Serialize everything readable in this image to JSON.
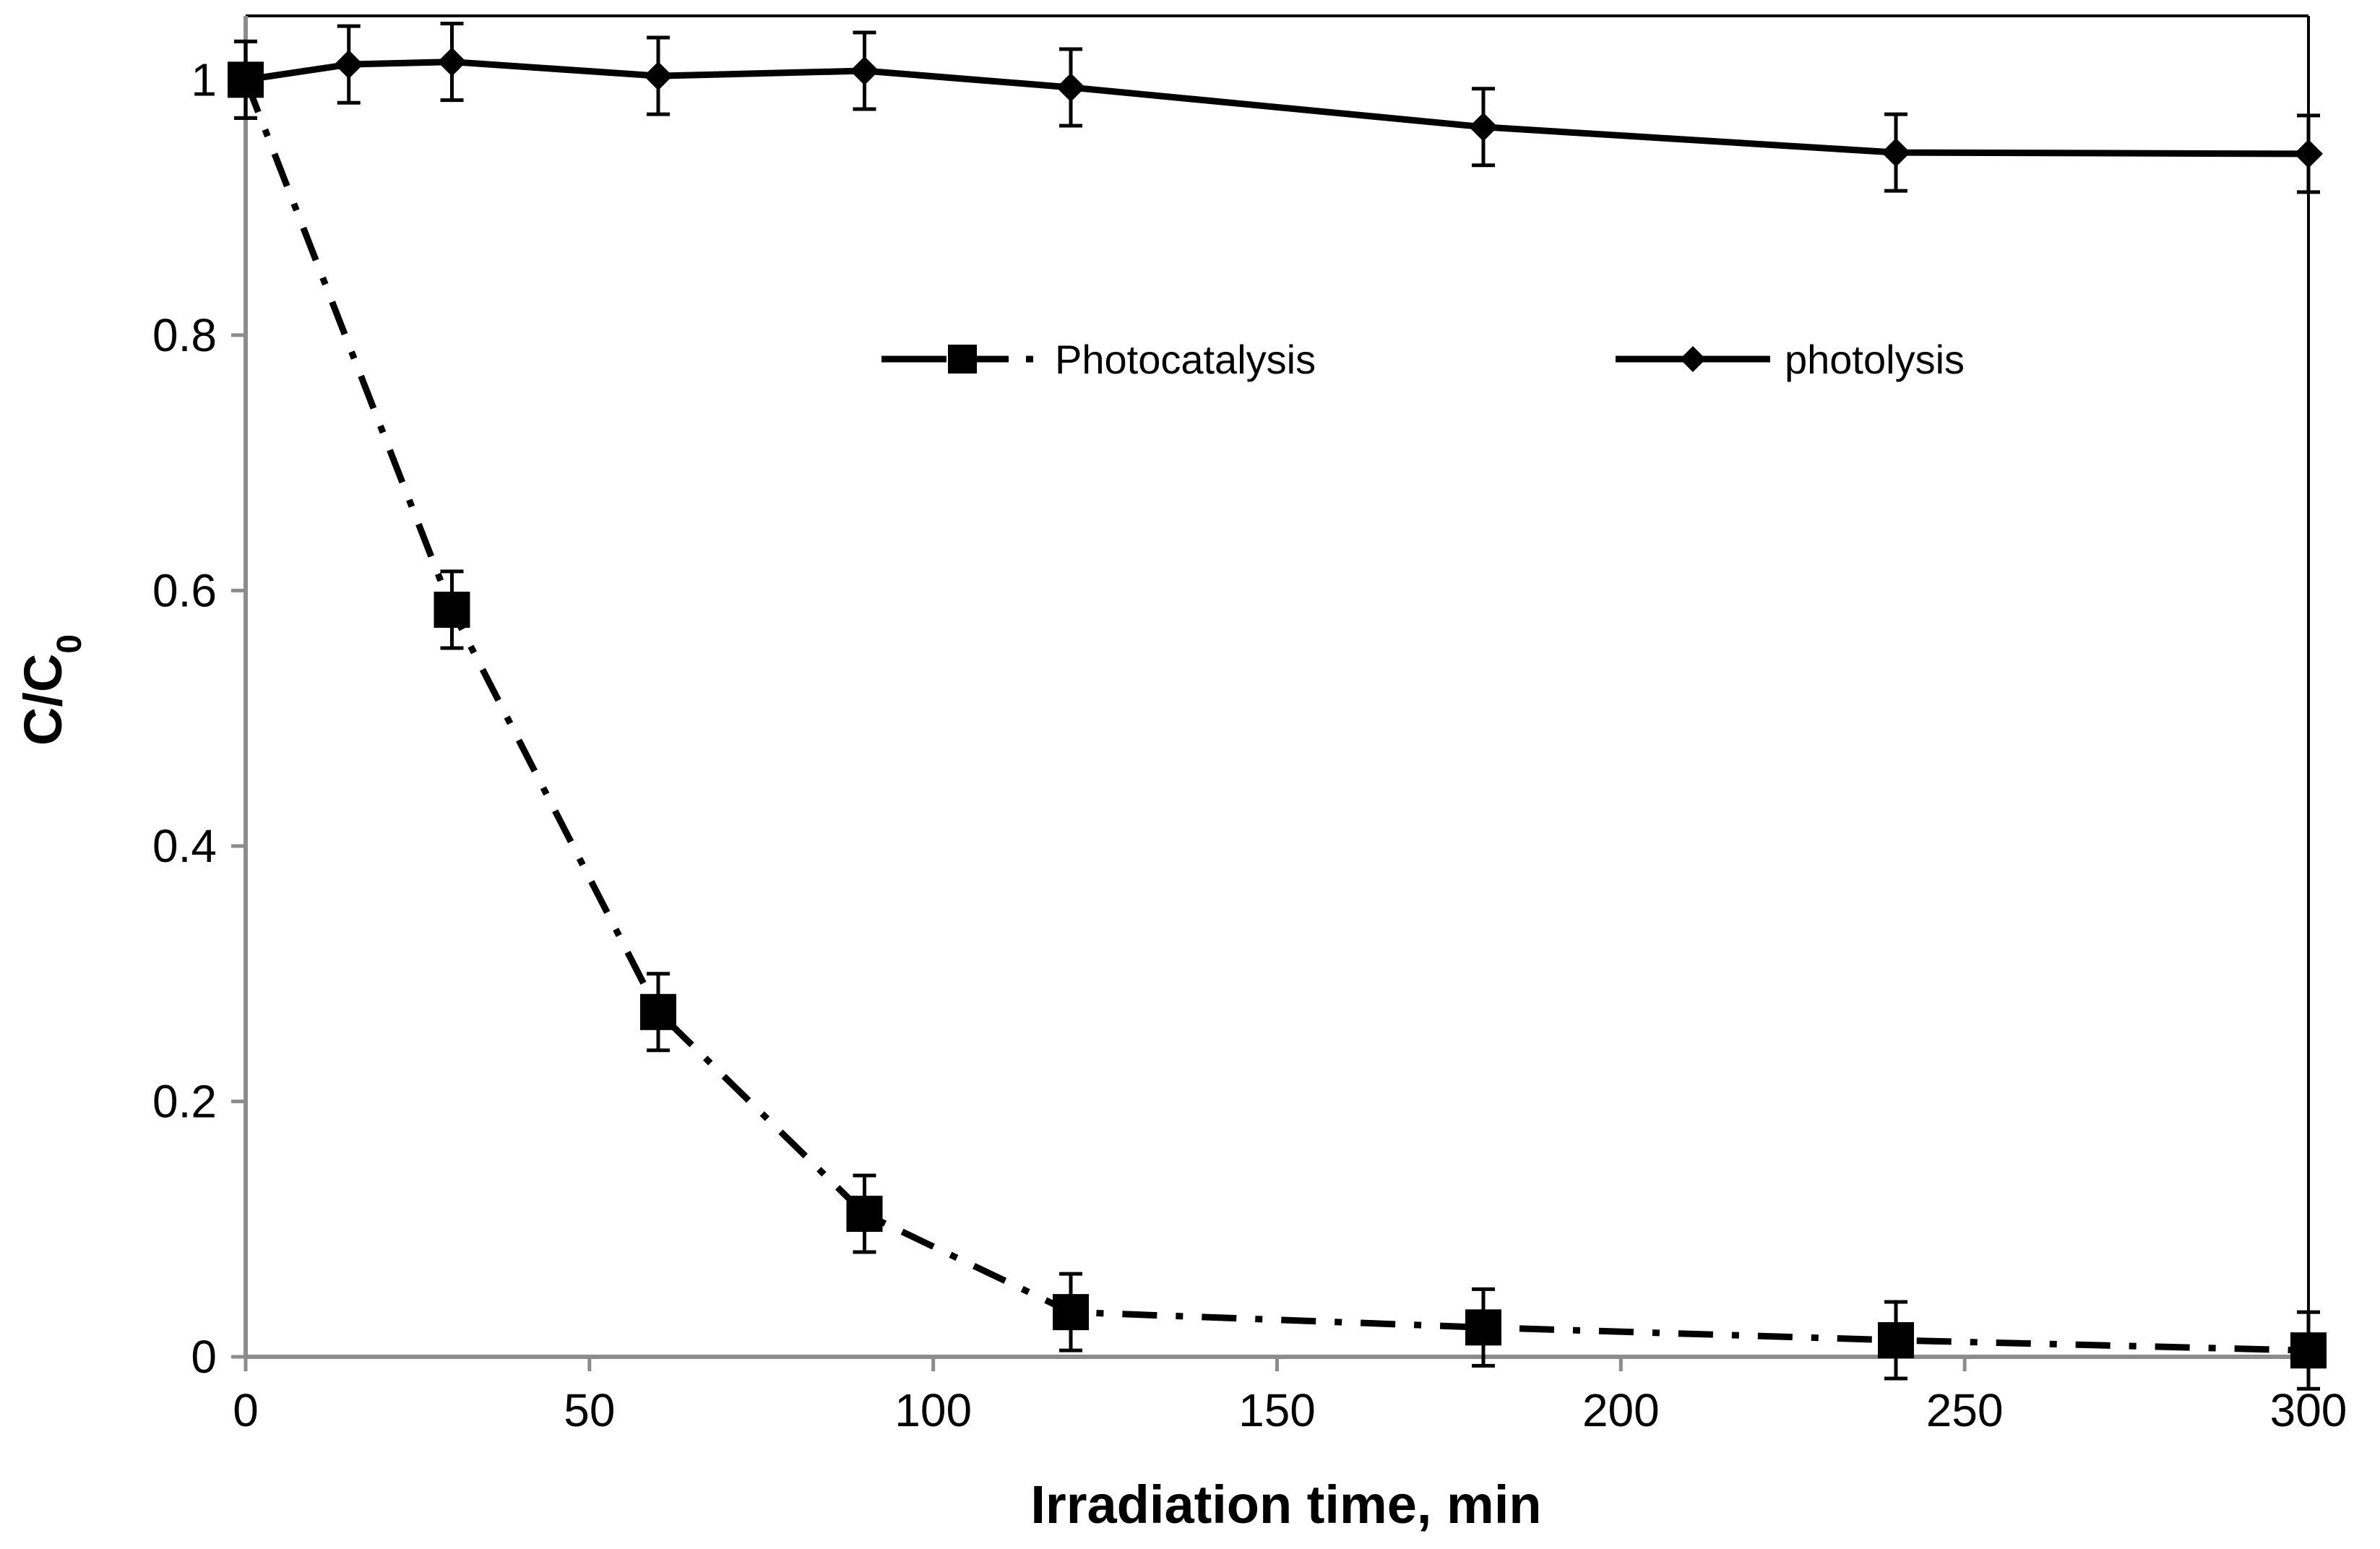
{
  "chart_data": {
    "type": "line",
    "title": "",
    "xlabel": "Irradiation time, min",
    "ylabel": {
      "main": "C/C",
      "subscript": "0"
    },
    "xlim": [
      0,
      300
    ],
    "ylim": [
      0,
      1.05
    ],
    "xticks": [
      0,
      50,
      100,
      150,
      200,
      250,
      300
    ],
    "xtick_labels": [
      "0",
      "50",
      "100",
      "150",
      "200",
      "250",
      "300"
    ],
    "yticks": [
      0,
      0.2,
      0.4,
      0.6,
      0.8,
      1
    ],
    "ytick_labels": [
      "0",
      "0.2",
      "0.4",
      "0.6",
      "0.8",
      "1"
    ],
    "grid": false,
    "legend_position": "upper-middle",
    "series": [
      {
        "name": "Photocatalysis",
        "marker": "square",
        "line_style": "dash-dot",
        "color": "#000000",
        "x": [
          0,
          30,
          60,
          90,
          120,
          180,
          240,
          300
        ],
        "y": [
          1.0,
          0.585,
          0.27,
          0.112,
          0.035,
          0.023,
          0.013,
          0.005
        ],
        "error": [
          0.03,
          0.03,
          0.03,
          0.03,
          0.03,
          0.03,
          0.03,
          0.03
        ]
      },
      {
        "name": "photolysis",
        "marker": "diamond",
        "line_style": "solid",
        "color": "#000000",
        "x": [
          0,
          15,
          30,
          60,
          90,
          120,
          180,
          240,
          300
        ],
        "y": [
          1.0,
          1.012,
          1.014,
          1.003,
          1.007,
          0.994,
          0.963,
          0.943,
          0.942
        ],
        "error": [
          0.03,
          0.03,
          0.03,
          0.03,
          0.03,
          0.03,
          0.03,
          0.03,
          0.03
        ]
      }
    ]
  }
}
